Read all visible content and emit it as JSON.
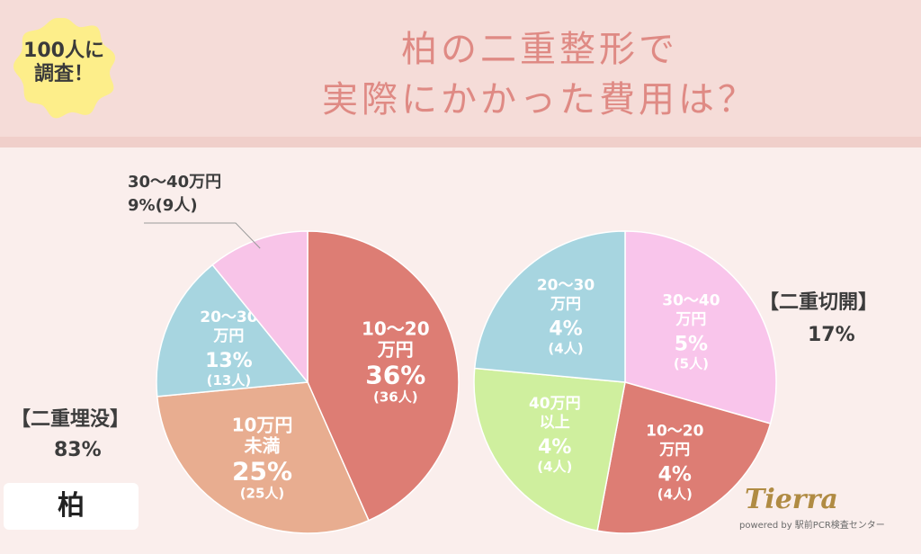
{
  "header": {
    "title_line1": "柏の二重整形で",
    "title_line2": "実際にかかった費用は？",
    "badge_line1": "100人に",
    "badge_line2": "調査！"
  },
  "city_label": "柏",
  "logo": {
    "name": "Tierra",
    "tagline": "powered by 駅前PCR検査センター"
  },
  "colors": {
    "accent": "#df8a84",
    "bg": "#f9e8e6"
  },
  "chart_data": [
    {
      "type": "pie",
      "group_heading": "【二重埋没】",
      "group_share": "83%",
      "slices": [
        {
          "label_lines": [
            "10〜20",
            "万円"
          ],
          "value": 36,
          "pct": "36%",
          "count": "(36人)",
          "color": "#dd7d74"
        },
        {
          "label_lines": [
            "10万円",
            "未満"
          ],
          "value": 25,
          "pct": "25%",
          "count": "(25人)",
          "color": "#e8ad90"
        },
        {
          "label_lines": [
            "20〜30",
            "万円"
          ],
          "value": 13,
          "pct": "13%",
          "count": "(13人)",
          "color": "#a7d5e0"
        },
        {
          "label_lines": [
            "30〜40万円"
          ],
          "value": 9,
          "pct": "9%",
          "count": "(9人)",
          "color": "#f8c4e8"
        }
      ]
    },
    {
      "type": "pie",
      "group_heading": "【二重切開】",
      "group_share": "17%",
      "slices": [
        {
          "label_lines": [
            "30〜40",
            "万円"
          ],
          "value": 5,
          "pct": "5%",
          "count": "(5人)",
          "color": "#f9c5eb"
        },
        {
          "label_lines": [
            "10〜20",
            "万円"
          ],
          "value": 4,
          "pct": "4%",
          "count": "(4人)",
          "color": "#dd7d74"
        },
        {
          "label_lines": [
            "40万円",
            "以上"
          ],
          "value": 4,
          "pct": "4%",
          "count": "(4人)",
          "color": "#cfef9e"
        },
        {
          "label_lines": [
            "20〜30",
            "万円"
          ],
          "value": 4,
          "pct": "4%",
          "count": "(4人)",
          "color": "#a7d5e0"
        }
      ]
    }
  ]
}
